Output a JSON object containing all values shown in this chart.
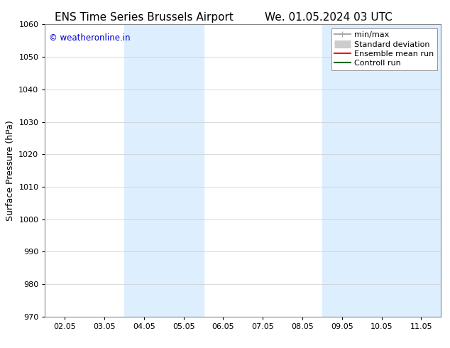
{
  "title_left": "ENS Time Series Brussels Airport",
  "title_right": "We. 01.05.2024 03 UTC",
  "ylabel": "Surface Pressure (hPa)",
  "ylim": [
    970,
    1060
  ],
  "yticks": [
    970,
    980,
    990,
    1000,
    1010,
    1020,
    1030,
    1040,
    1050,
    1060
  ],
  "xtick_labels": [
    "02.05",
    "03.05",
    "04.05",
    "05.05",
    "06.05",
    "07.05",
    "08.05",
    "09.05",
    "10.05",
    "11.05"
  ],
  "xtick_positions": [
    2,
    3,
    4,
    5,
    6,
    7,
    8,
    9,
    10,
    11
  ],
  "xlim": [
    1.5,
    11.5
  ],
  "shaded_bands": [
    {
      "x_start": 3.5,
      "x_end": 5.5,
      "color": "#ddeeff"
    },
    {
      "x_start": 8.5,
      "x_end": 11.5,
      "color": "#ddeeff"
    }
  ],
  "watermark": "© weatheronline.in",
  "watermark_color": "#0000cc",
  "legend_items": [
    {
      "label": "min/max",
      "color": "#aaaaaa",
      "lw": 1.5,
      "style": "solid"
    },
    {
      "label": "Standard deviation",
      "color": "#cccccc",
      "lw": 6,
      "style": "solid"
    },
    {
      "label": "Ensemble mean run",
      "color": "#ff0000",
      "lw": 1.5,
      "style": "solid"
    },
    {
      "label": "Controll run",
      "color": "#006600",
      "lw": 1.5,
      "style": "solid"
    }
  ],
  "bg_color": "#ffffff",
  "grid_color": "#cccccc",
  "title_fontsize": 11,
  "tick_fontsize": 8,
  "ylabel_fontsize": 9,
  "legend_fontsize": 8
}
